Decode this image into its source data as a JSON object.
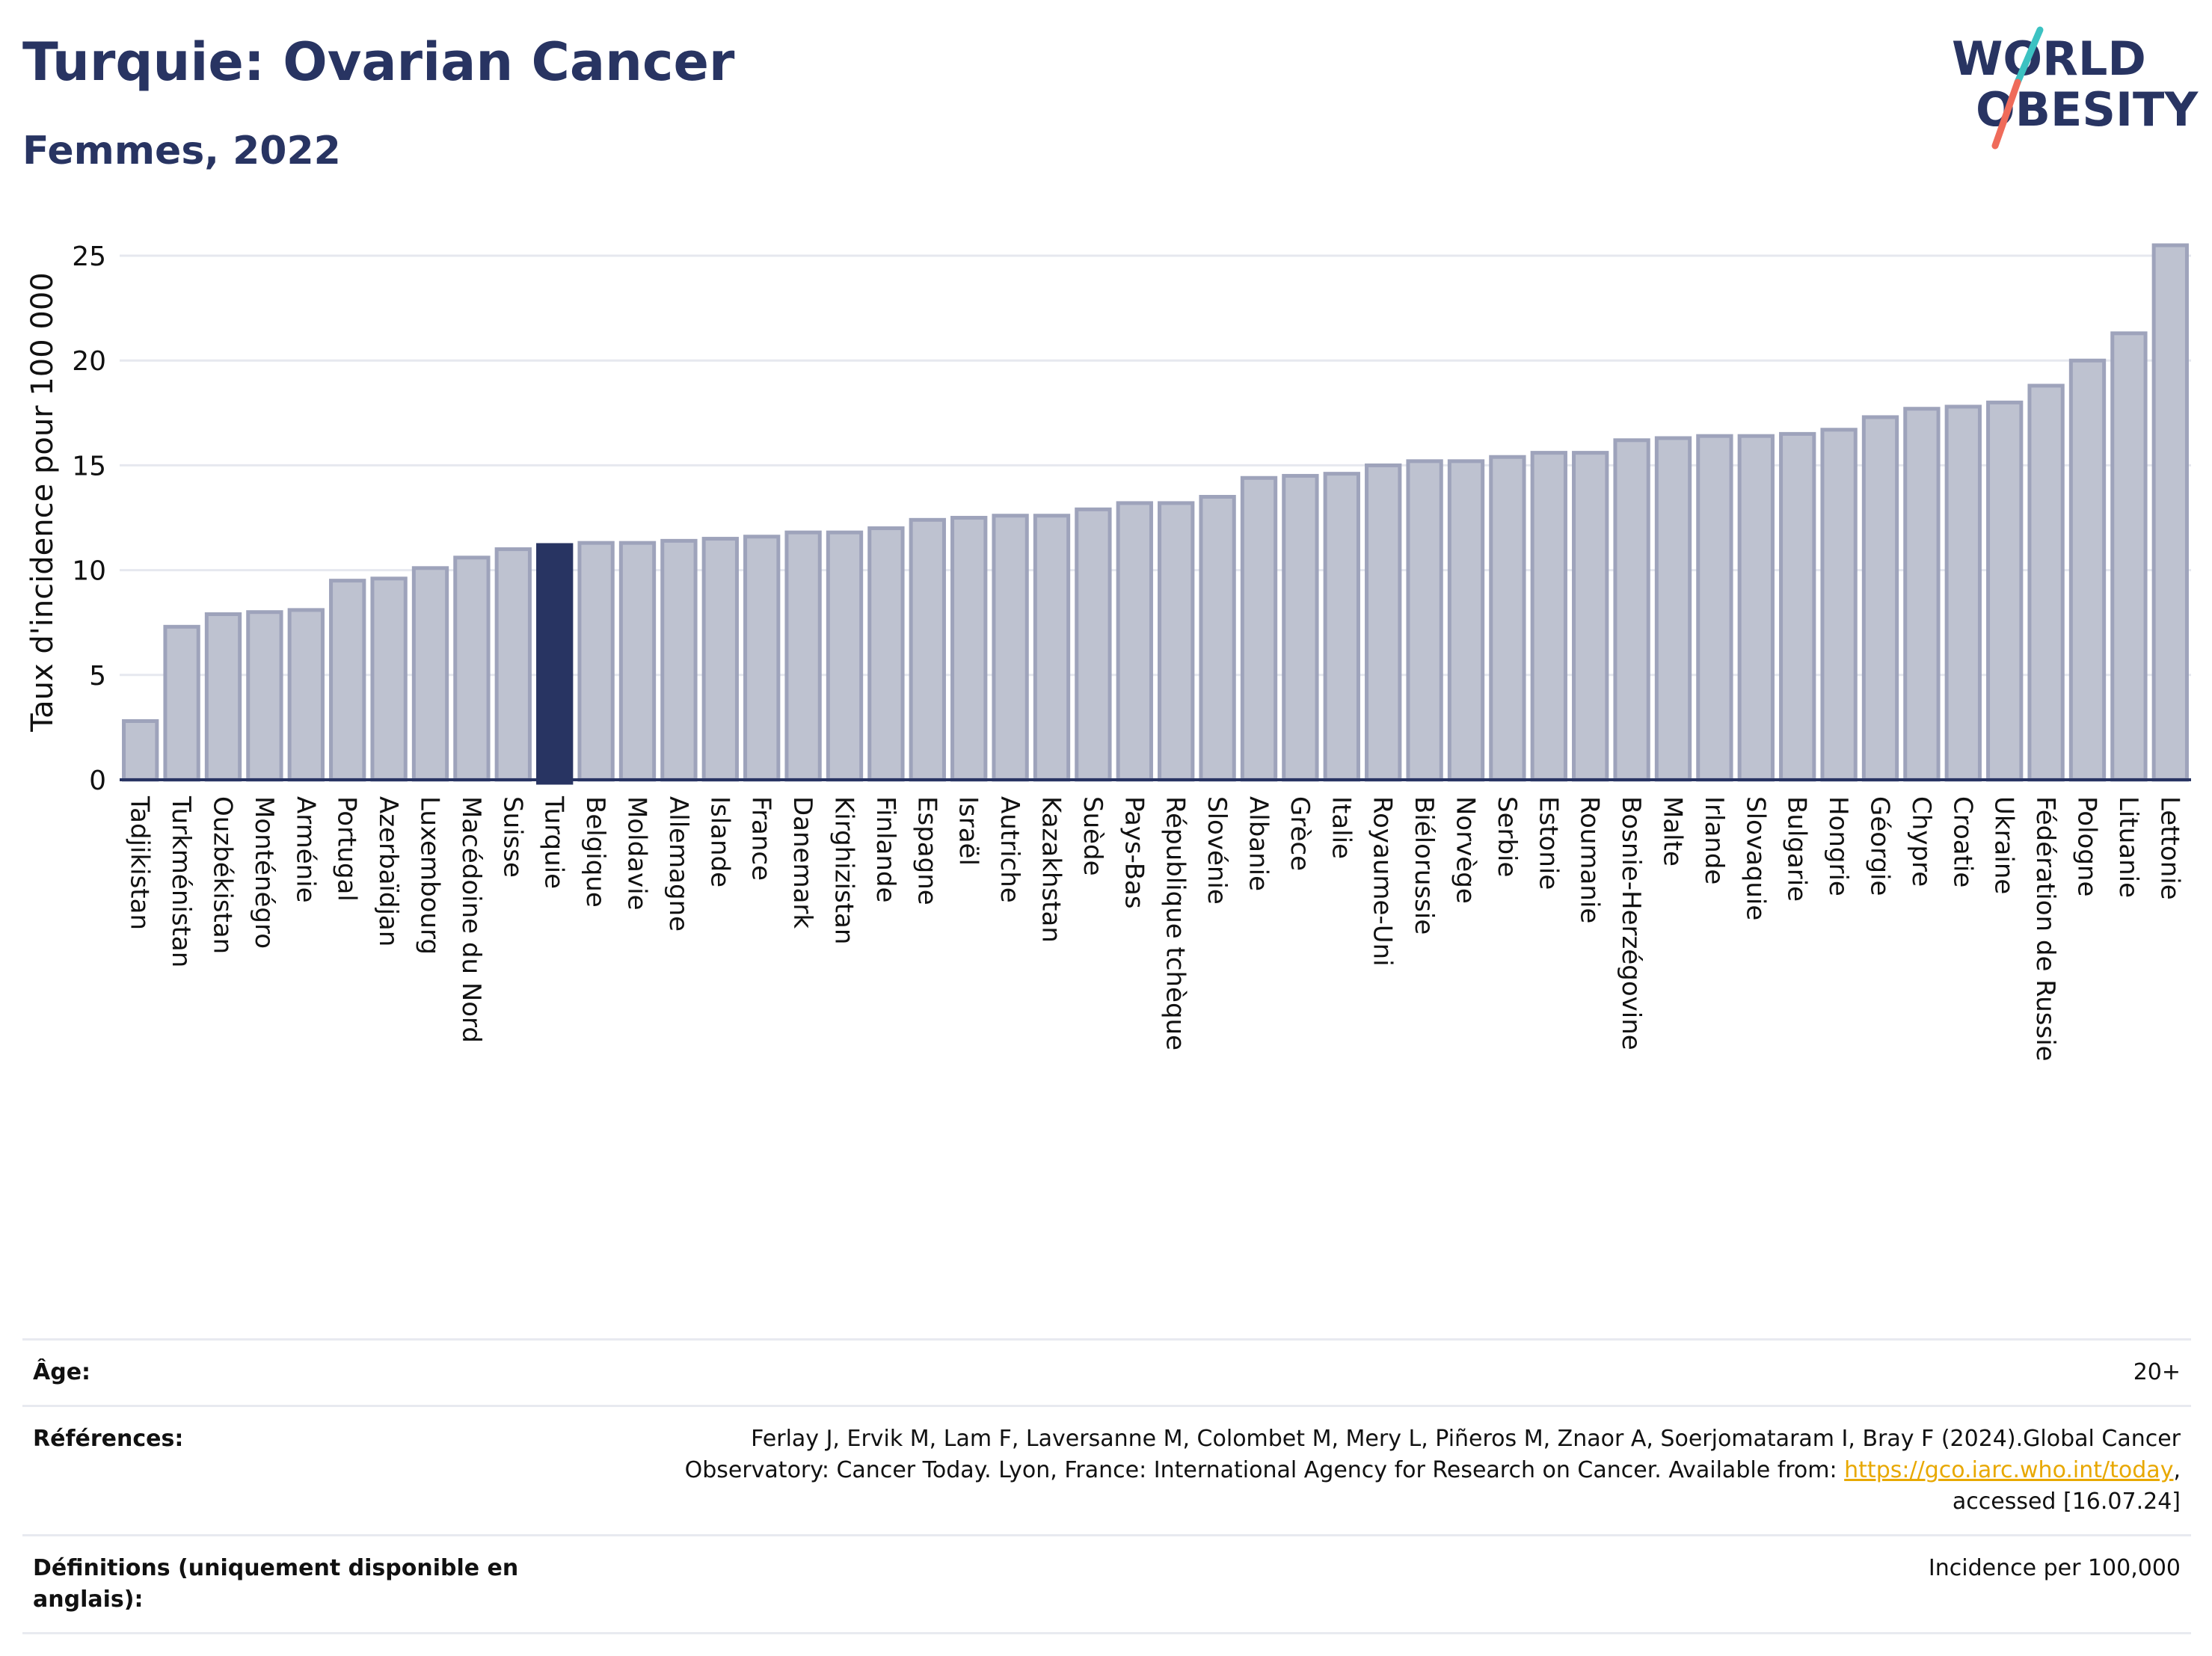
{
  "header": {
    "title": "Turquie: Ovarian Cancer",
    "subtitle": "Femmes, 2022",
    "logo_line1": "WORLD",
    "logo_line2": "OBESITY"
  },
  "colors": {
    "bar_default": "#bec2d0",
    "bar_border": "#9ea3bb",
    "bar_highlight": "#283462",
    "title": "#283462",
    "logo_teal": "#3cc2c2",
    "logo_coral": "#ef6b5a",
    "link": "#e8a800"
  },
  "chart_data": {
    "type": "bar",
    "title": "Turquie: Ovarian Cancer",
    "subtitle": "Femmes, 2022",
    "xlabel": "",
    "ylabel": "Taux d'incidence pour 100 000",
    "ylim": [
      0,
      26.5
    ],
    "yticks": [
      0,
      5,
      10,
      15,
      20,
      25
    ],
    "grid": true,
    "highlight": "Turquie",
    "categories": [
      "Tadjikistan",
      "Turkménistan",
      "Ouzbékistan",
      "Monténégro",
      "Arménie",
      "Portugal",
      "Azerbaïdjan",
      "Luxembourg",
      "Macédoine du Nord",
      "Suisse",
      "Turquie",
      "Belgique",
      "Moldavie",
      "Allemagne",
      "Islande",
      "France",
      "Danemark",
      "Kirghizistan",
      "Finlande",
      "Espagne",
      "Israël",
      "Autriche",
      "Kazakhstan",
      "Suède",
      "Pays-Bas",
      "République tchèque",
      "Slovénie",
      "Albanie",
      "Grèce",
      "Italie",
      "Royaume-Uni",
      "Biélorussie",
      "Norvège",
      "Serbie",
      "Estonie",
      "Roumanie",
      "Bosnie-Herzégovine",
      "Malte",
      "Irlande",
      "Slovaquie",
      "Bulgarie",
      "Hongrie",
      "Géorgie",
      "Chypre",
      "Croatie",
      "Ukraine",
      "Fédération de Russie",
      "Pologne",
      "Lituanie",
      "Lettonie"
    ],
    "values": [
      2.8,
      7.3,
      7.9,
      8.0,
      8.1,
      9.5,
      9.6,
      10.1,
      10.6,
      11.0,
      11.2,
      11.3,
      11.3,
      11.4,
      11.5,
      11.6,
      11.8,
      11.8,
      12.0,
      12.4,
      12.5,
      12.6,
      12.6,
      12.9,
      13.2,
      13.2,
      13.5,
      14.4,
      14.5,
      14.6,
      15.0,
      15.2,
      15.2,
      15.4,
      15.6,
      15.6,
      16.2,
      16.3,
      16.4,
      16.4,
      16.5,
      16.7,
      17.3,
      17.7,
      17.8,
      18.0,
      18.8,
      20.0,
      21.3,
      25.5
    ]
  },
  "info": {
    "age_label": "Âge:",
    "age_value": "20+",
    "ref_label": "Références:",
    "ref_text_1": "Ferlay J, Ervik M, Lam F, Laversanne M, Colombet M, Mery L, Piñeros M, Znaor A, Soerjomataram I, Bray F (2024).Global Cancer Observatory: Cancer Today. Lyon, France: International Agency for Research on Cancer. Available from: ",
    "ref_link": "https://gco.iarc.who.int/today",
    "ref_text_2": ", accessed [16.07.24]",
    "def_label": "Définitions (uniquement disponible en anglais):",
    "def_value": "Incidence per 100,000"
  }
}
